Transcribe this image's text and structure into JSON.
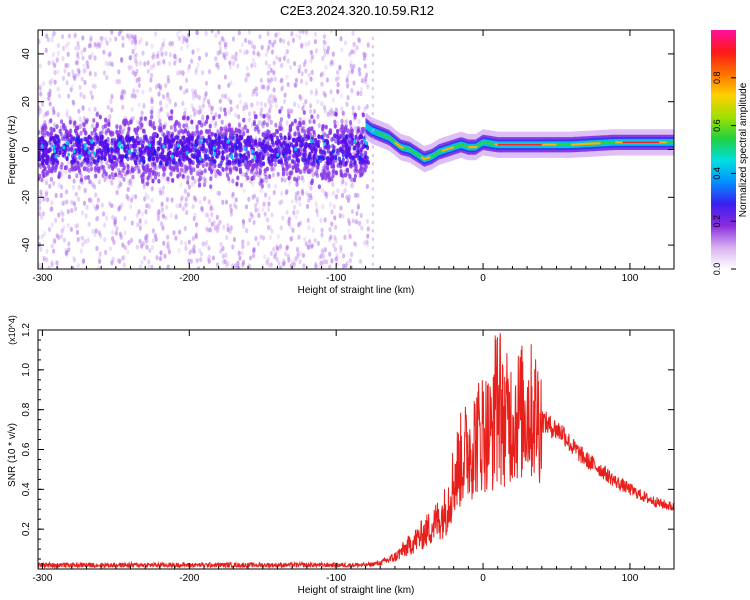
{
  "title": "C2E3.2024.320.10.59.R12",
  "colors": {
    "snr_line": "#e8201c",
    "frame": "#000000",
    "background": "#ffffff"
  },
  "chart_data": [
    {
      "type": "heatmap",
      "xlabel": "Height of straight line (km)",
      "ylabel": "Frequency (Hz)",
      "xlim": [
        -303,
        130
      ],
      "ylim": [
        -50,
        50
      ],
      "x_ticks": [
        -300,
        -200,
        -100,
        0,
        100
      ],
      "y_ticks": [
        40,
        20,
        0,
        -20,
        -40
      ],
      "x_tick_labels": [
        "-300",
        "-200",
        "-100",
        "0",
        "100"
      ],
      "y_tick_labels": [
        "40",
        "20",
        "0",
        "-20",
        "-40"
      ],
      "colorbar": {
        "label": "Normalized spectral amplitude",
        "range": [
          0,
          1
        ],
        "ticks": [
          0.0,
          0.2,
          0.4,
          0.6,
          0.8
        ],
        "tick_labels": [
          "0.0",
          "0.2",
          "0.4",
          "0.6",
          "0.8"
        ],
        "colormap": [
          "#ffffff",
          "#d8b0f0",
          "#8b2be0",
          "#3a20f0",
          "#0090ff",
          "#00e0e0",
          "#20d040",
          "#a0e000",
          "#ffd000",
          "#ff7000",
          "#ff1818",
          "#ff10a0"
        ]
      },
      "noise_region_x": [
        -303,
        -78
      ],
      "signal_track": {
        "x": [
          -80,
          -76,
          -72,
          -68,
          -64,
          -60,
          -56,
          -50,
          -45,
          -40,
          -35,
          -30,
          -25,
          -20,
          -15,
          -10,
          -5,
          0,
          10,
          30,
          60,
          90,
          120,
          130
        ],
        "frequency_hz": [
          10,
          8,
          7,
          6,
          5,
          3,
          1,
          0,
          -2,
          -4,
          -3,
          -1,
          0,
          1,
          2,
          1,
          1,
          3,
          2,
          2,
          2,
          3,
          3,
          3
        ]
      }
    },
    {
      "type": "line",
      "xlabel": "Height of straight line (km)",
      "ylabel": "SNR (10 * v/v)",
      "y_multiplier": "(x10^4)",
      "xlim": [
        -303,
        130
      ],
      "ylim": [
        0,
        1.2
      ],
      "x_ticks": [
        -300,
        -200,
        -100,
        0,
        100
      ],
      "y_ticks": [
        0.2,
        0.4,
        0.6,
        0.8,
        1.0,
        1.2
      ],
      "x_tick_labels": [
        "-300",
        "-200",
        "-100",
        "0",
        "100"
      ],
      "y_tick_labels": [
        "0.2",
        "0.4",
        "0.6",
        "0.8",
        "1.0",
        "1.2"
      ],
      "series": [
        {
          "x": [
            -303,
            -250,
            -200,
            -150,
            -100,
            -80,
            -70,
            -60,
            -50,
            -40,
            -30,
            -25,
            -20,
            -15,
            -10,
            -5,
            0,
            5,
            10,
            15,
            20,
            25,
            30,
            35,
            40,
            45,
            50,
            55,
            60,
            70,
            80,
            90,
            100,
            110,
            120,
            130
          ],
          "values": [
            0.02,
            0.02,
            0.02,
            0.02,
            0.02,
            0.02,
            0.03,
            0.06,
            0.12,
            0.18,
            0.25,
            0.3,
            0.45,
            0.55,
            0.6,
            0.65,
            0.7,
            0.68,
            0.72,
            0.75,
            0.76,
            0.78,
            0.8,
            0.78,
            0.75,
            0.72,
            0.7,
            0.68,
            0.62,
            0.55,
            0.5,
            0.44,
            0.4,
            0.36,
            0.33,
            0.31
          ]
        }
      ]
    }
  ]
}
